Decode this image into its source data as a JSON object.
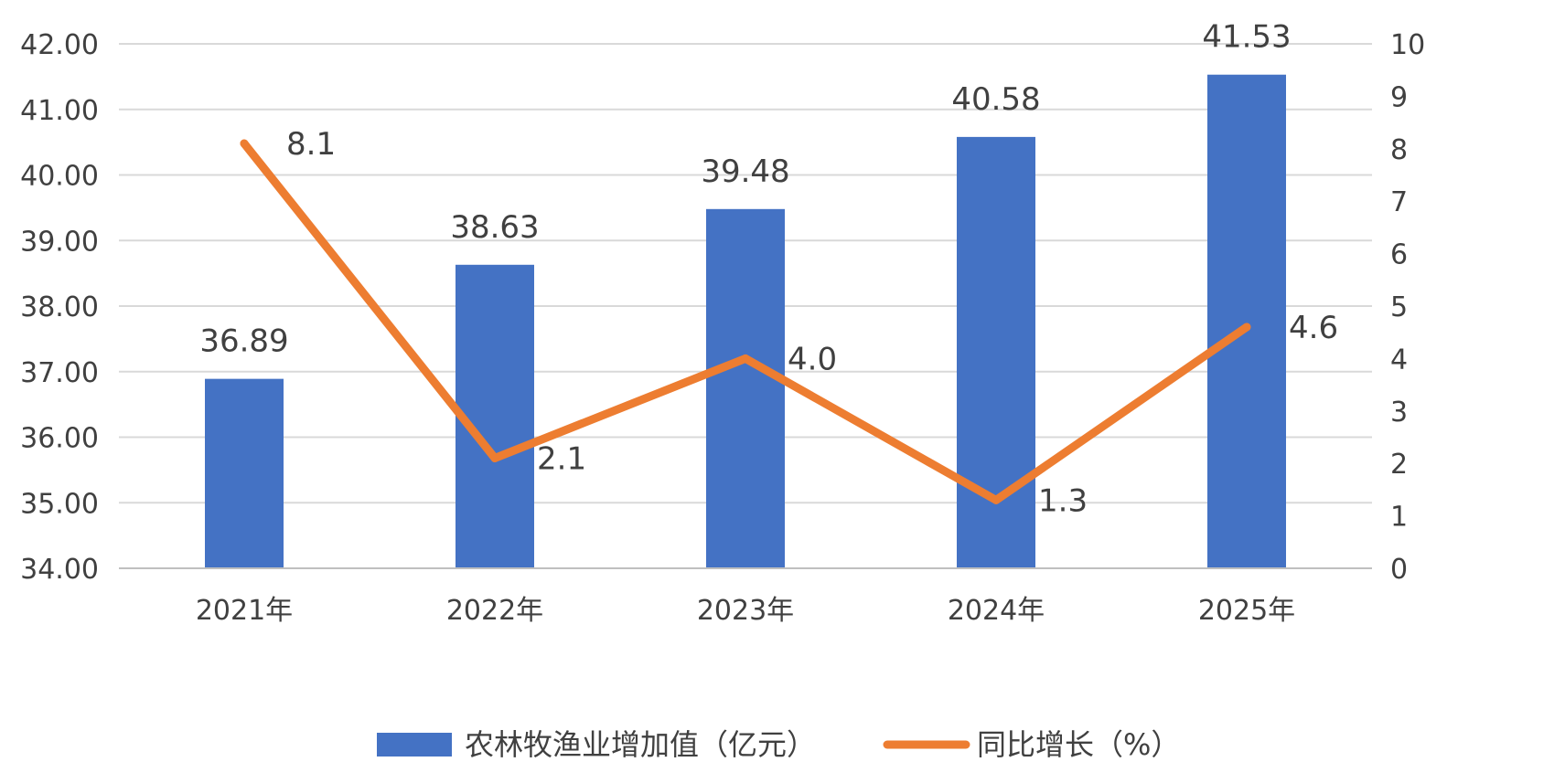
{
  "chart_data": {
    "type": "bar",
    "categories": [
      "2021年",
      "2022年",
      "2023年",
      "2024年",
      "2025年"
    ],
    "series": [
      {
        "name": "农林牧渔业增加值（亿元）",
        "type": "bar",
        "axis": "left",
        "values": [
          36.89,
          38.63,
          39.48,
          40.58,
          41.53
        ],
        "labels": [
          "36.89",
          "38.63",
          "39.48",
          "40.58",
          "41.53"
        ],
        "color": "#4472c4"
      },
      {
        "name": "同比增长（%）",
        "type": "line",
        "axis": "right",
        "values": [
          8.1,
          2.1,
          4.0,
          1.3,
          4.6
        ],
        "labels": [
          "8.1",
          "2.1",
          "4.0",
          "1.3",
          "4.6"
        ],
        "color": "#ed7d31"
      }
    ],
    "left_axis": {
      "min": 34,
      "max": 42,
      "ticks": [
        "34.00",
        "35.00",
        "36.00",
        "37.00",
        "38.00",
        "39.00",
        "40.00",
        "41.00",
        "42.00"
      ]
    },
    "right_axis": {
      "min": 0,
      "max": 10,
      "ticks": [
        "0",
        "1",
        "2",
        "3",
        "4",
        "5",
        "6",
        "7",
        "8",
        "9",
        "10"
      ]
    },
    "grid": true,
    "legend_position": "bottom",
    "title": "",
    "xlabel": "",
    "ylabel": ""
  }
}
